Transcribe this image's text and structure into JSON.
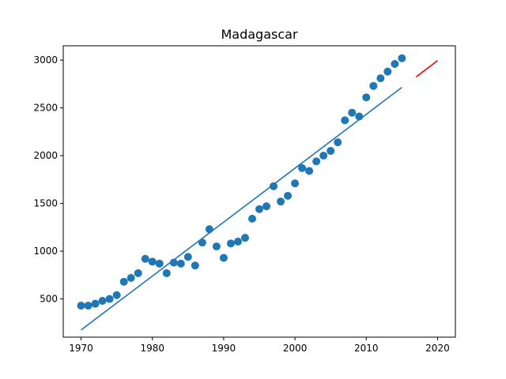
{
  "chart_data": {
    "type": "scatter",
    "title": "Madagascar",
    "xlabel": "",
    "ylabel": "",
    "xlim": [
      1967.5,
      2022.5
    ],
    "ylim": [
      100,
      3150
    ],
    "x_ticks": [
      1970,
      1980,
      1990,
      2000,
      2010,
      2020
    ],
    "y_ticks": [
      500,
      1000,
      1500,
      2000,
      2500,
      3000
    ],
    "grid": false,
    "legend": "none",
    "series": [
      {
        "kind": "scatter",
        "color": "#1f77b4",
        "x": [
          1970,
          1971,
          1972,
          1973,
          1974,
          1975,
          1976,
          1977,
          1978,
          1979,
          1980,
          1981,
          1982,
          1983,
          1984,
          1985,
          1986,
          1987,
          1988,
          1989,
          1990,
          1991,
          1992,
          1993,
          1994,
          1995,
          1996,
          1997,
          1998,
          1999,
          2000,
          2001,
          2002,
          2003,
          2004,
          2005,
          2006,
          2007,
          2008,
          2009,
          2010,
          2011,
          2012,
          2013,
          2014,
          2015
        ],
        "y": [
          430,
          430,
          450,
          480,
          500,
          540,
          680,
          720,
          770,
          920,
          890,
          870,
          770,
          880,
          870,
          940,
          850,
          1090,
          1230,
          1050,
          930,
          1080,
          1100,
          1140,
          1340,
          1440,
          1470,
          1680,
          1520,
          1580,
          1710,
          1870,
          1840,
          1940,
          2000,
          2050,
          2140,
          2370,
          2450,
          2410,
          2610,
          2730,
          2810,
          2880,
          2960,
          3020
        ]
      },
      {
        "kind": "line",
        "color": "#1f77b4",
        "x": [
          1970,
          2015
        ],
        "y": [
          175,
          2715
        ]
      },
      {
        "kind": "line",
        "color": "#ff0000",
        "x": [
          2017,
          2020
        ],
        "y": [
          2825,
          2995
        ]
      }
    ]
  }
}
